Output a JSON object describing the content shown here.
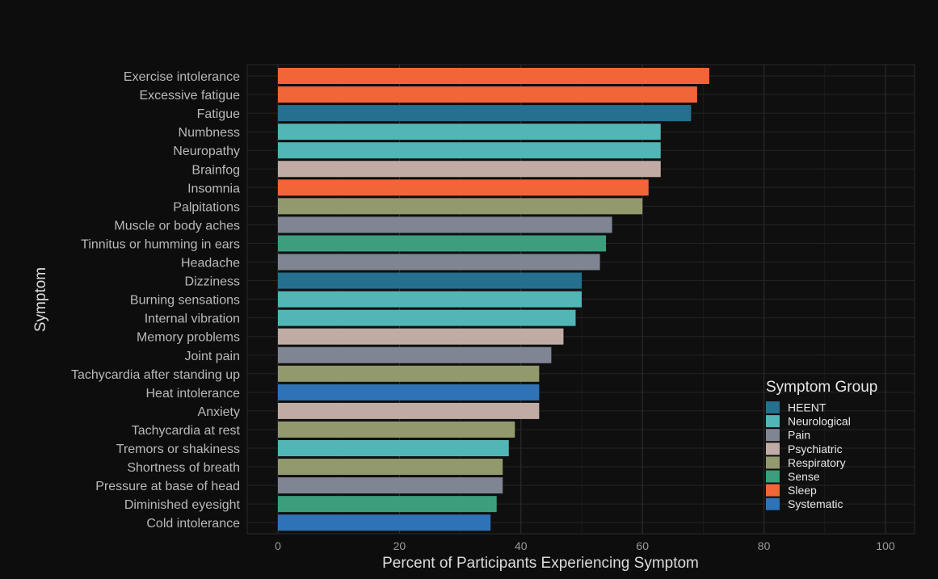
{
  "chart_data": {
    "type": "bar",
    "orientation": "horizontal",
    "xlabel": "Percent of Participants Experiencing Symptom",
    "ylabel": "Symptom",
    "xlim": [
      0,
      100
    ],
    "xticks": [
      0,
      20,
      40,
      60,
      80,
      100
    ],
    "grid": true,
    "legend": {
      "title": "Symptom Group",
      "placement": "bottom-right",
      "entries": [
        {
          "name": "HEENT",
          "color": "#26708f"
        },
        {
          "name": "Neurological",
          "color": "#52b5b6"
        },
        {
          "name": "Pain",
          "color": "#7f8593"
        },
        {
          "name": "Psychiatric",
          "color": "#c1aca5"
        },
        {
          "name": "Respiratory",
          "color": "#929a6d"
        },
        {
          "name": "Sense",
          "color": "#3c9e7d"
        },
        {
          "name": "Sleep",
          "color": "#f26539"
        },
        {
          "name": "Systematic",
          "color": "#2e73b8"
        }
      ]
    },
    "bars": [
      {
        "category": "Exercise intolerance",
        "value": 71,
        "group": "Sleep"
      },
      {
        "category": "Excessive fatigue",
        "value": 69,
        "group": "Sleep"
      },
      {
        "category": "Fatigue",
        "value": 68,
        "group": "HEENT"
      },
      {
        "category": "Numbness",
        "value": 63,
        "group": "Neurological"
      },
      {
        "category": "Neuropathy",
        "value": 63,
        "group": "Neurological"
      },
      {
        "category": "Brainfog",
        "value": 63,
        "group": "Psychiatric"
      },
      {
        "category": "Insomnia",
        "value": 61,
        "group": "Sleep"
      },
      {
        "category": "Palpitations",
        "value": 60,
        "group": "Respiratory"
      },
      {
        "category": "Muscle or body aches",
        "value": 55,
        "group": "Pain"
      },
      {
        "category": "Tinnitus or humming in ears",
        "value": 54,
        "group": "Sense"
      },
      {
        "category": "Headache",
        "value": 53,
        "group": "Pain"
      },
      {
        "category": "Dizziness",
        "value": 50,
        "group": "HEENT"
      },
      {
        "category": "Burning sensations",
        "value": 50,
        "group": "Neurological"
      },
      {
        "category": "Internal vibration",
        "value": 49,
        "group": "Neurological"
      },
      {
        "category": "Memory problems",
        "value": 47,
        "group": "Psychiatric"
      },
      {
        "category": "Joint pain",
        "value": 45,
        "group": "Pain"
      },
      {
        "category": "Tachycardia after standing up",
        "value": 43,
        "group": "Respiratory"
      },
      {
        "category": "Heat intolerance",
        "value": 43,
        "group": "Systematic"
      },
      {
        "category": "Anxiety",
        "value": 43,
        "group": "Psychiatric"
      },
      {
        "category": "Tachycardia at rest",
        "value": 39,
        "group": "Respiratory"
      },
      {
        "category": "Tremors or shakiness",
        "value": 38,
        "group": "Neurological"
      },
      {
        "category": "Shortness of breath",
        "value": 37,
        "group": "Respiratory"
      },
      {
        "category": "Pressure at base of head",
        "value": 37,
        "group": "Pain"
      },
      {
        "category": "Diminished eyesight",
        "value": 36,
        "group": "Sense"
      },
      {
        "category": "Cold intolerance",
        "value": 35,
        "group": "Systematic"
      }
    ]
  }
}
